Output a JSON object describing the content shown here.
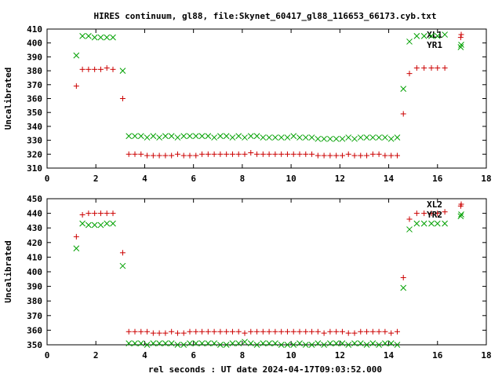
{
  "chart_data": {
    "type": "scatter",
    "title": "HIRES continuum, gl88, file:Skynet_60417_gl88_116653_66173.cyb.txt",
    "xlabel": "rel seconds : UT date 2024-04-17T09:03:52.000",
    "colors": {
      "XL": "#cc0000",
      "YR": "#00a000"
    },
    "panels": [
      {
        "ylabel": "Uncalibrated",
        "xlim": [
          0,
          18
        ],
        "ylim": [
          310,
          410
        ],
        "xticks": [
          "0",
          "2",
          "4",
          "6",
          "8",
          "10",
          "12",
          "14",
          "16",
          "18"
        ],
        "yticks": [
          "310",
          "320",
          "330",
          "340",
          "350",
          "360",
          "370",
          "380",
          "390",
          "400",
          "410"
        ],
        "legend_position": "top-right",
        "series": [
          {
            "name": "XL1",
            "marker": "plus",
            "x": [
              1.2,
              1.45,
              1.7,
              1.95,
              2.2,
              2.45,
              2.7,
              3.1,
              3.35,
              3.6,
              3.85,
              4.1,
              4.35,
              4.6,
              4.85,
              5.1,
              5.35,
              5.6,
              5.85,
              6.1,
              6.35,
              6.6,
              6.85,
              7.1,
              7.35,
              7.6,
              7.85,
              8.1,
              8.35,
              8.6,
              8.85,
              9.1,
              9.35,
              9.6,
              9.85,
              10.1,
              10.35,
              10.6,
              10.85,
              11.1,
              11.35,
              11.6,
              11.85,
              12.1,
              12.35,
              12.6,
              12.85,
              13.1,
              13.35,
              13.6,
              13.85,
              14.1,
              14.35,
              14.6,
              14.85,
              15.15,
              15.45,
              15.75,
              16.0,
              16.3,
              16.95
            ],
            "y": [
              369,
              381,
              381,
              381,
              381,
              382,
              381,
              360,
              320,
              320,
              320,
              319,
              319,
              319,
              319,
              319,
              320,
              319,
              319,
              319,
              320,
              320,
              320,
              320,
              320,
              320,
              320,
              320,
              321,
              320,
              320,
              320,
              320,
              320,
              320,
              320,
              320,
              320,
              320,
              319,
              319,
              319,
              319,
              319,
              320,
              319,
              319,
              319,
              320,
              320,
              319,
              319,
              319,
              349,
              378,
              382,
              382,
              382,
              382,
              382,
              404
            ]
          },
          {
            "name": "YR1",
            "marker": "cross",
            "x": [
              1.2,
              1.45,
              1.7,
              1.95,
              2.2,
              2.45,
              2.7,
              3.1,
              3.35,
              3.6,
              3.85,
              4.1,
              4.35,
              4.6,
              4.85,
              5.1,
              5.35,
              5.6,
              5.85,
              6.1,
              6.35,
              6.6,
              6.85,
              7.1,
              7.35,
              7.6,
              7.85,
              8.1,
              8.35,
              8.6,
              8.85,
              9.1,
              9.35,
              9.6,
              9.85,
              10.1,
              10.35,
              10.6,
              10.85,
              11.1,
              11.35,
              11.6,
              11.85,
              12.1,
              12.35,
              12.6,
              12.85,
              13.1,
              13.35,
              13.6,
              13.85,
              14.1,
              14.35,
              14.6,
              14.85,
              15.15,
              15.45,
              15.75,
              16.0,
              16.3,
              16.95
            ],
            "y": [
              391,
              405,
              405,
              404,
              404,
              404,
              404,
              380,
              333,
              333,
              333,
              332,
              333,
              332,
              333,
              333,
              332,
              333,
              333,
              333,
              333,
              333,
              332,
              333,
              333,
              332,
              333,
              332,
              333,
              333,
              332,
              332,
              332,
              332,
              332,
              333,
              332,
              332,
              332,
              331,
              331,
              331,
              331,
              331,
              332,
              331,
              332,
              332,
              332,
              332,
              332,
              331,
              332,
              367,
              401,
              405,
              405,
              405,
              405,
              406,
              397
            ]
          }
        ]
      },
      {
        "ylabel": "Uncalibrated",
        "xlim": [
          0,
          18
        ],
        "ylim": [
          350,
          450
        ],
        "xticks": [
          "0",
          "2",
          "4",
          "6",
          "8",
          "10",
          "12",
          "14",
          "16",
          "18"
        ],
        "yticks": [
          "350",
          "360",
          "370",
          "380",
          "390",
          "400",
          "410",
          "420",
          "430",
          "440",
          "450"
        ],
        "legend_position": "top-right",
        "series": [
          {
            "name": "XL2",
            "marker": "plus",
            "x": [
              1.2,
              1.45,
              1.7,
              1.95,
              2.2,
              2.45,
              2.7,
              3.1,
              3.35,
              3.6,
              3.85,
              4.1,
              4.35,
              4.6,
              4.85,
              5.1,
              5.35,
              5.6,
              5.85,
              6.1,
              6.35,
              6.6,
              6.85,
              7.1,
              7.35,
              7.6,
              7.85,
              8.1,
              8.35,
              8.6,
              8.85,
              9.1,
              9.35,
              9.6,
              9.85,
              10.1,
              10.35,
              10.6,
              10.85,
              11.1,
              11.35,
              11.6,
              11.85,
              12.1,
              12.35,
              12.6,
              12.85,
              13.1,
              13.35,
              13.6,
              13.85,
              14.1,
              14.35,
              14.6,
              14.85,
              15.15,
              15.45,
              15.75,
              16.0,
              16.3,
              16.95
            ],
            "y": [
              424,
              439,
              440,
              440,
              440,
              440,
              440,
              413,
              359,
              359,
              359,
              359,
              358,
              358,
              358,
              359,
              358,
              358,
              359,
              359,
              359,
              359,
              359,
              359,
              359,
              359,
              359,
              358,
              359,
              359,
              359,
              359,
              359,
              359,
              359,
              359,
              359,
              359,
              359,
              359,
              358,
              359,
              359,
              359,
              358,
              358,
              359,
              359,
              359,
              359,
              359,
              358,
              359,
              396,
              436,
              440,
              440,
              440,
              440,
              441,
              445
            ]
          },
          {
            "name": "YR2",
            "marker": "cross",
            "x": [
              1.2,
              1.45,
              1.7,
              1.95,
              2.2,
              2.45,
              2.7,
              3.1,
              3.35,
              3.6,
              3.85,
              4.1,
              4.35,
              4.6,
              4.85,
              5.1,
              5.35,
              5.6,
              5.85,
              6.1,
              6.35,
              6.6,
              6.85,
              7.1,
              7.35,
              7.6,
              7.85,
              8.1,
              8.35,
              8.6,
              8.85,
              9.1,
              9.35,
              9.6,
              9.85,
              10.1,
              10.35,
              10.6,
              10.85,
              11.1,
              11.35,
              11.6,
              11.85,
              12.1,
              12.35,
              12.6,
              12.85,
              13.1,
              13.35,
              13.6,
              13.85,
              14.1,
              14.35,
              14.6,
              14.85,
              15.15,
              15.45,
              15.75,
              16.0,
              16.3,
              16.95
            ],
            "y": [
              416,
              433,
              432,
              432,
              432,
              433,
              433,
              404,
              351,
              351,
              351,
              350,
              351,
              351,
              351,
              351,
              350,
              350,
              351,
              351,
              351,
              351,
              351,
              350,
              350,
              351,
              351,
              352,
              351,
              350,
              351,
              351,
              351,
              350,
              350,
              350,
              351,
              350,
              350,
              351,
              350,
              351,
              351,
              351,
              350,
              351,
              351,
              350,
              351,
              350,
              351,
              351,
              350,
              389,
              429,
              433,
              433,
              433,
              433,
              433,
              438
            ]
          }
        ]
      }
    ]
  }
}
